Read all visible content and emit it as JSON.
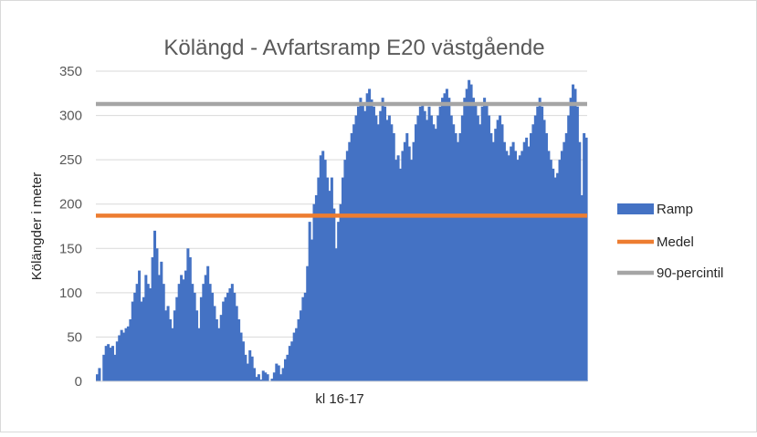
{
  "chart_data": {
    "type": "area",
    "title": "Kölängd - Avfartsramp  E20 västgående",
    "xlabel": "kl 16-17",
    "ylabel": "Kölängder i meter",
    "ylim": [
      0,
      350
    ],
    "yticks": [
      "0",
      "50",
      "100",
      "150",
      "200",
      "250",
      "300",
      "350"
    ],
    "grid": true,
    "legend_position": "right",
    "series": [
      {
        "name": "Ramp",
        "type": "area",
        "color": "#4472C4",
        "values": [
          8,
          15,
          0,
          30,
          40,
          42,
          38,
          40,
          30,
          45,
          52,
          58,
          55,
          60,
          62,
          70,
          90,
          100,
          110,
          125,
          90,
          95,
          120,
          110,
          105,
          140,
          170,
          150,
          120,
          135,
          110,
          80,
          85,
          70,
          60,
          80,
          95,
          110,
          120,
          115,
          125,
          150,
          140,
          110,
          100,
          80,
          60,
          95,
          110,
          120,
          130,
          110,
          100,
          85,
          70,
          60,
          75,
          90,
          95,
          100,
          105,
          110,
          100,
          85,
          70,
          55,
          45,
          30,
          20,
          35,
          28,
          15,
          5,
          8,
          2,
          12,
          10,
          8,
          0,
          3,
          10,
          20,
          18,
          8,
          15,
          25,
          30,
          40,
          45,
          55,
          60,
          70,
          80,
          95,
          100,
          130,
          180,
          160,
          200,
          210,
          230,
          255,
          260,
          250,
          230,
          215,
          230,
          195,
          150,
          180,
          200,
          230,
          250,
          260,
          270,
          280,
          290,
          300,
          310,
          320,
          315,
          305,
          325,
          330,
          318,
          310,
          300,
          290,
          305,
          320,
          310,
          295,
          300,
          290,
          280,
          250,
          255,
          240,
          260,
          270,
          280,
          265,
          250,
          270,
          290,
          300,
          310,
          315,
          305,
          295,
          310,
          300,
          290,
          285,
          300,
          310,
          320,
          325,
          330,
          320,
          300,
          290,
          280,
          270,
          280,
          300,
          320,
          330,
          340,
          335,
          320,
          315,
          300,
          290,
          310,
          320,
          315,
          300,
          280,
          270,
          285,
          295,
          300,
          290,
          270,
          260,
          255,
          265,
          270,
          260,
          250,
          255,
          260,
          270,
          275,
          265,
          280,
          290,
          300,
          310,
          320,
          310,
          295,
          280,
          260,
          250,
          240,
          230,
          235,
          250,
          260,
          270,
          280,
          300,
          320,
          335,
          330,
          310,
          270,
          210,
          280,
          275
        ]
      },
      {
        "name": "Medel",
        "type": "line",
        "color": "#ED7D31",
        "value": 187
      },
      {
        "name": "90-percintil",
        "type": "line",
        "color": "#A5A5A5",
        "value": 313
      }
    ]
  }
}
